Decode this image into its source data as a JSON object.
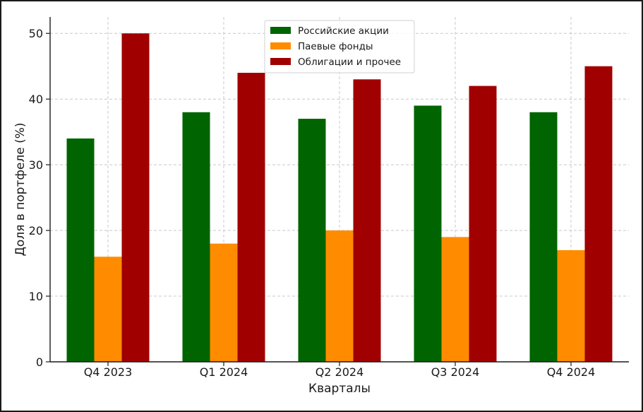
{
  "chart_data": {
    "type": "bar",
    "categories": [
      "Q4 2023",
      "Q1 2024",
      "Q2 2024",
      "Q3 2024",
      "Q4 2024"
    ],
    "series": [
      {
        "name": "Российские акции",
        "values": [
          34,
          38,
          37,
          39,
          38
        ],
        "color": "#006400"
      },
      {
        "name": "Паевые фонды",
        "values": [
          16,
          18,
          20,
          19,
          17
        ],
        "color": "#ff8c00"
      },
      {
        "name": "Облигации и прочее",
        "values": [
          50,
          44,
          43,
          42,
          45
        ],
        "color": "#a00000"
      }
    ],
    "title": "",
    "xlabel": "Кварталы",
    "ylabel": "Доля в портфеле (%)",
    "ylim": [
      0,
      52.5
    ],
    "yticks": [
      0,
      10,
      20,
      30,
      40,
      50
    ],
    "grid": true,
    "legend_position": "top-center"
  }
}
